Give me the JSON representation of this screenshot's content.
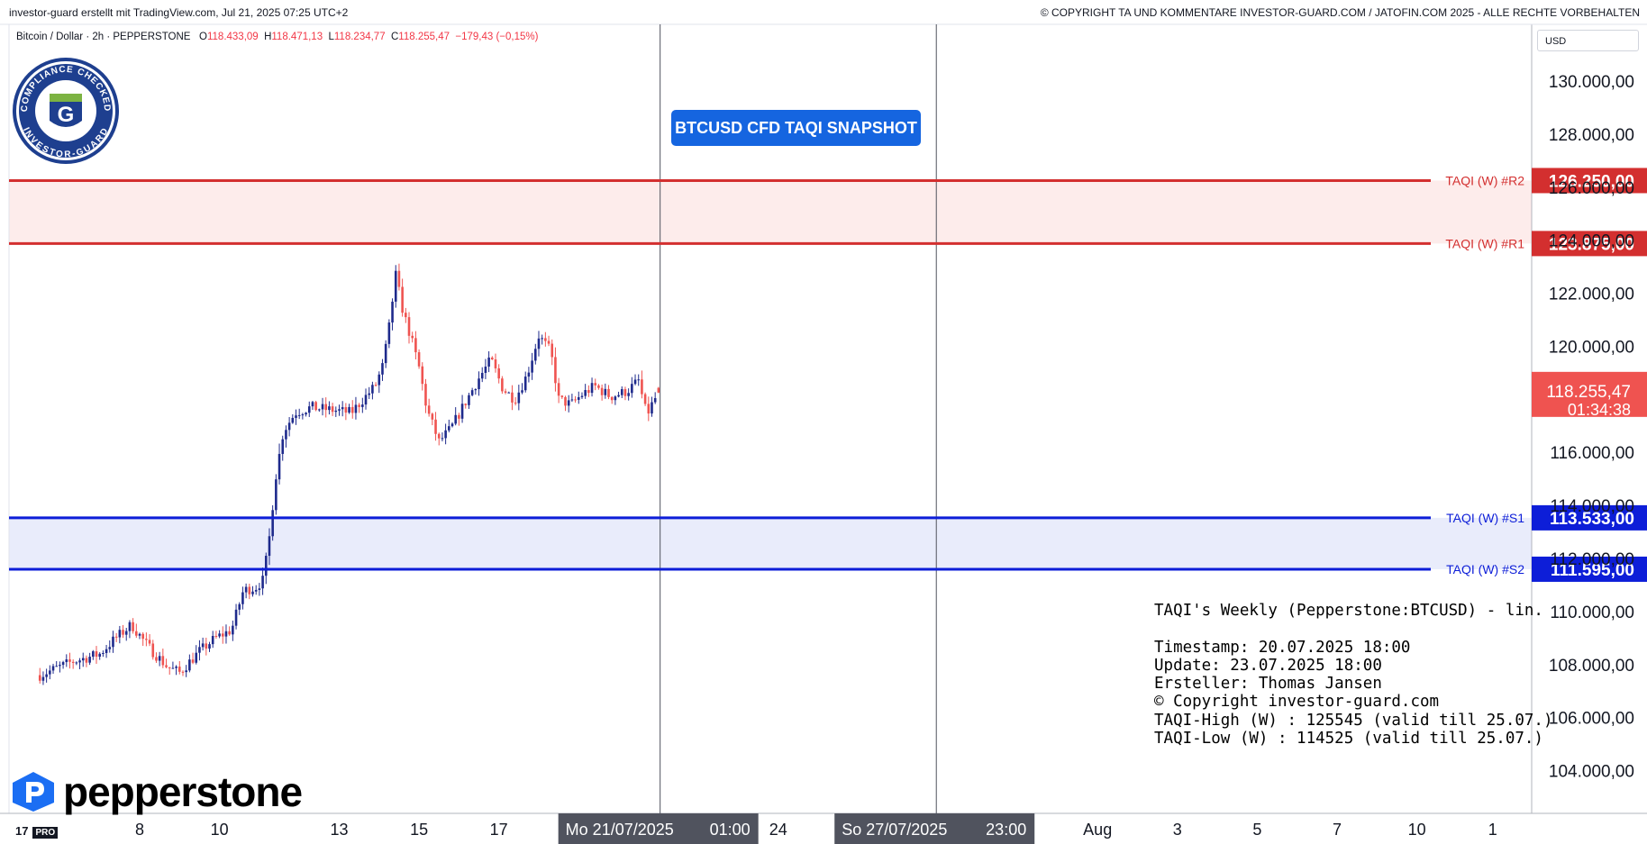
{
  "header": {
    "left": "investor-guard erstellt mit TradingView.com, Jul 21, 2025 07:25 UTC+2",
    "right": "© COPYRIGHT TA UND KOMMENTARE INVESTOR-GUARD.COM / JATOFIN.COM 2025 - ALLE RECHTE VORBEHALTEN"
  },
  "symbol": {
    "name": "Bitcoin / Dollar · 2h · PEPPERSTONE",
    "open_label": "O",
    "open": "118.433,09",
    "high_label": "H",
    "high": "118.471,13",
    "low_label": "L",
    "low": "118.234,77",
    "close_label": "C",
    "close": "118.255,47",
    "change": "−179,43 (−0,15%)"
  },
  "currency_selector": "USD",
  "snapshot_button": "BTCUSD CFD TAQI SNAPSHOT",
  "seal": {
    "top_text": "COMPLIANCE CHECKED",
    "bottom_text": "INVESTOR-GUARD",
    "letter": "G"
  },
  "brand": {
    "name": "pepperstone"
  },
  "tv_logo": {
    "mark": "17",
    "badge": "PRO"
  },
  "info_box": [
    "TAQI's Weekly (Pepperstone:BTCUSD) - lin.",
    "",
    "Timestamp: 20.07.2025 18:00",
    "Update: 23.07.2025 18:00",
    "Ersteller: Thomas Jansen",
    "© Copyright investor-guard.com",
    "TAQI-High (W) : 125545 (valid till 25.07.)",
    "TAQI-Low (W) : 114525 (valid till 25.07.)"
  ],
  "colors": {
    "resistance": "#d32f2f",
    "resistance_zone": "#fdeceb",
    "support": "#0d1ed8",
    "support_zone": "#e9ecfb",
    "up": "#1e2a8c",
    "down": "#ef5350",
    "price_tag": "#ef5350",
    "snapshot": "#1565e0"
  },
  "chart_data": {
    "type": "candlestick",
    "title": "Bitcoin / Dollar · 2h · PEPPERSTONE",
    "ylim": [
      103000,
      131700
    ],
    "y_ticks": [
      104000,
      106000,
      108000,
      110000,
      112000,
      114000,
      116000,
      118000,
      120000,
      122000,
      124000,
      126000,
      128000,
      130000
    ],
    "y_tick_labels": [
      "104.000,00",
      "106.000,00",
      "108.000,00",
      "110.000,00",
      "112.000,00",
      "114.000,00",
      "116.000,00",
      "118.000,00",
      "120.000,00",
      "122.000,00",
      "124.000,00",
      "126.000,00",
      "128.000,00",
      "130.000,00"
    ],
    "x_labels": [
      {
        "text": "8",
        "day": 8
      },
      {
        "text": "10",
        "day": 10
      },
      {
        "text": "13",
        "day": 13
      },
      {
        "text": "15",
        "day": 15
      },
      {
        "text": "17",
        "day": 17
      },
      {
        "text": "24",
        "day": 24
      },
      {
        "text": "Aug",
        "day": 32
      },
      {
        "text": "3",
        "day": 34
      },
      {
        "text": "5",
        "day": 36
      },
      {
        "text": "7",
        "day": 38
      },
      {
        "text": "10",
        "day": 40
      },
      {
        "text": "1",
        "day": 41.9
      }
    ],
    "x_unit_note": "day of July 2025 (values above 31 continue into August)",
    "vertical_markers": [
      {
        "label_date": "Mo 21/07/2025",
        "label_time": "01:00",
        "day": 21.04
      },
      {
        "label_date": "So 27/07/2025",
        "label_time": "23:00",
        "day": 27.96
      }
    ],
    "levels": [
      {
        "name": "TAQI (W) #R2",
        "value": 126250,
        "label": "126.250,00",
        "kind": "resistance"
      },
      {
        "name": "TAQI (W) #R1",
        "value": 123875,
        "label": "123.875,00",
        "kind": "resistance"
      },
      {
        "name": "TAQI (W) #S1",
        "value": 113533,
        "label": "113.533,00",
        "kind": "support"
      },
      {
        "name": "TAQI (W) #S2",
        "value": 111595,
        "label": "111.595,00",
        "kind": "support"
      }
    ],
    "last_price": {
      "value": 118255.47,
      "label": "118.255,47",
      "countdown": "01:34:38"
    },
    "candle_start_day": 5.5,
    "candle_interval_days": 0.08333,
    "close_anchors": [
      [
        5.5,
        107600
      ],
      [
        6.3,
        108100
      ],
      [
        7.0,
        108400
      ],
      [
        7.4,
        109000
      ],
      [
        7.8,
        109500
      ],
      [
        8.2,
        108700
      ],
      [
        8.7,
        107900
      ],
      [
        9.0,
        107700
      ],
      [
        9.5,
        108500
      ],
      [
        9.9,
        109000
      ],
      [
        10.3,
        109300
      ],
      [
        10.6,
        110800
      ],
      [
        10.9,
        110900
      ],
      [
        11.1,
        111200
      ],
      [
        11.25,
        112800
      ],
      [
        11.4,
        115000
      ],
      [
        11.6,
        116800
      ],
      [
        11.9,
        117500
      ],
      [
        12.3,
        117700
      ],
      [
        12.8,
        117600
      ],
      [
        13.3,
        117500
      ],
      [
        13.6,
        118000
      ],
      [
        13.9,
        118500
      ],
      [
        14.1,
        119300
      ],
      [
        14.3,
        121200
      ],
      [
        14.4,
        122800
      ],
      [
        14.6,
        121300
      ],
      [
        14.8,
        120300
      ],
      [
        15.0,
        119200
      ],
      [
        15.2,
        117600
      ],
      [
        15.5,
        116400
      ],
      [
        15.8,
        116900
      ],
      [
        16.2,
        118000
      ],
      [
        16.5,
        118800
      ],
      [
        16.8,
        119500
      ],
      [
        17.1,
        118400
      ],
      [
        17.4,
        118000
      ],
      [
        17.7,
        118900
      ],
      [
        18.0,
        120400
      ],
      [
        18.3,
        119800
      ],
      [
        18.5,
        118000
      ],
      [
        18.8,
        117800
      ],
      [
        19.1,
        118200
      ],
      [
        19.4,
        118500
      ],
      [
        19.8,
        118100
      ],
      [
        20.2,
        118300
      ],
      [
        20.5,
        118700
      ],
      [
        20.7,
        117400
      ],
      [
        20.9,
        118000
      ],
      [
        21.03,
        118255
      ]
    ],
    "final_candle": {
      "open": 118433.09,
      "high": 118471.13,
      "low": 118234.77,
      "close": 118255.47
    }
  }
}
